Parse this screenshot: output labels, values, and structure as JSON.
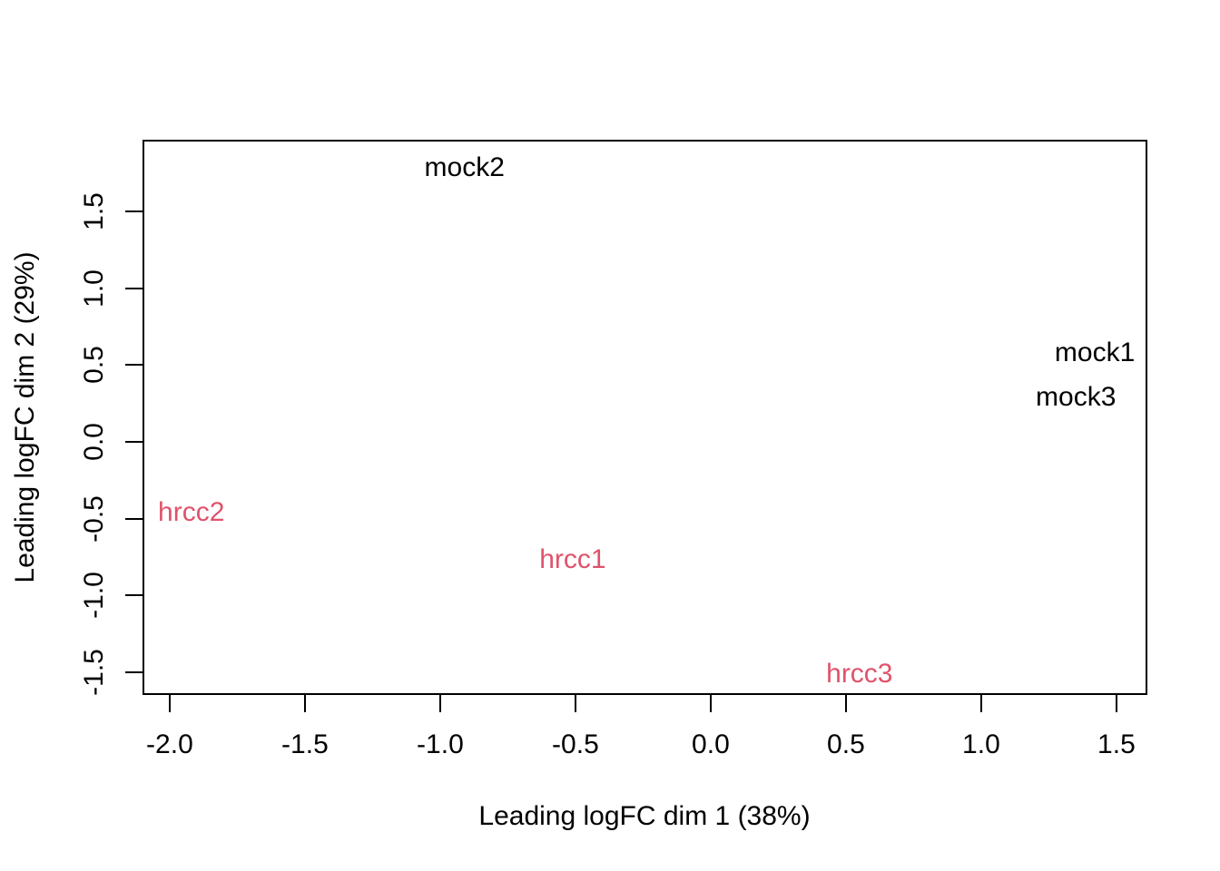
{
  "chart_data": {
    "type": "scatter",
    "subtype": "mds-plot-text-labels",
    "title": "",
    "xlabel": "Leading logFC dim 1 (38%)",
    "ylabel": "Leading logFC dim 2 (29%)",
    "xlim": [
      -2.097,
      1.611
    ],
    "ylim": [
      -1.641,
      1.96
    ],
    "x_tick_labels": [
      "-2.0",
      "-1.5",
      "-1.0",
      "-0.5",
      "0.0",
      "0.5",
      "1.0",
      "1.5"
    ],
    "y_tick_labels": [
      "-1.5",
      "-1.0",
      "-0.5",
      "0.0",
      "0.5",
      "1.0",
      "1.5"
    ],
    "grid": false,
    "legend_position": "none",
    "background_color": "#ffffff",
    "axis_color": "#000000",
    "series": [
      {
        "name": "mock",
        "color": "#000000",
        "points": [
          {
            "label": "mock1",
            "x": 1.42,
            "y": 0.58
          },
          {
            "label": "mock2",
            "x": -0.91,
            "y": 1.78
          },
          {
            "label": "mock3",
            "x": 1.35,
            "y": 0.29
          }
        ]
      },
      {
        "name": "hrcc",
        "color": "#DF536B",
        "points": [
          {
            "label": "hrcc1",
            "x": -0.51,
            "y": -0.77
          },
          {
            "label": "hrcc2",
            "x": -1.92,
            "y": -0.46
          },
          {
            "label": "hrcc3",
            "x": 0.55,
            "y": -1.51
          }
        ]
      }
    ]
  }
}
